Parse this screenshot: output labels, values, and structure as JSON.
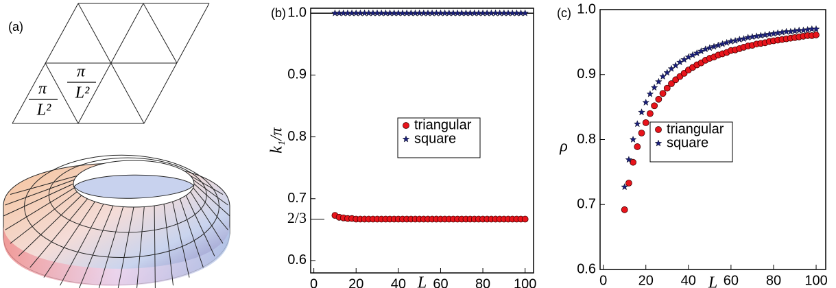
{
  "diagram": {
    "panel_label": "(a)",
    "fractions": [
      {
        "numerator": "π",
        "denominator": "L²"
      },
      {
        "numerator": "π",
        "denominator": "L²"
      }
    ]
  },
  "chart_data": [
    {
      "type": "scatter",
      "panel_label": "(b)",
      "x_label": "L",
      "y_label": "k₁/π",
      "xlim": [
        -1.5,
        104
      ],
      "ylim": [
        0.58,
        1.008
      ],
      "xticks": [
        0,
        20,
        40,
        60,
        80,
        100
      ],
      "yticks": [
        0.6,
        {
          "value": 0.6667,
          "label": "2/3"
        },
        0.7,
        0.8,
        0.9,
        {
          "value": 1,
          "label": "1.0"
        }
      ],
      "hlines": [
        1
      ],
      "legend": "center right",
      "x": [
        10,
        12,
        14,
        16,
        18,
        20,
        22,
        24,
        26,
        28,
        30,
        32,
        34,
        36,
        38,
        40,
        42,
        44,
        46,
        48,
        50,
        52,
        54,
        56,
        58,
        60,
        62,
        64,
        66,
        68,
        70,
        72,
        74,
        76,
        78,
        80,
        82,
        84,
        86,
        88,
        90,
        92,
        94,
        96,
        98,
        100
      ],
      "series": [
        {
          "name": "triangular",
          "color": "#e8141b",
          "marker": "circle",
          "values": [
            0.673,
            0.67,
            0.669,
            0.668,
            0.668,
            0.667,
            0.667,
            0.667,
            0.667,
            0.667,
            0.667,
            0.667,
            0.667,
            0.667,
            0.667,
            0.667,
            0.667,
            0.667,
            0.667,
            0.667,
            0.667,
            0.667,
            0.667,
            0.667,
            0.667,
            0.667,
            0.667,
            0.667,
            0.667,
            0.667,
            0.667,
            0.667,
            0.667,
            0.667,
            0.667,
            0.667,
            0.667,
            0.667,
            0.667,
            0.667,
            0.667,
            0.667,
            0.667,
            0.667,
            0.667,
            0.667
          ]
        },
        {
          "name": "square",
          "color": "#1a1f7a",
          "marker": "star",
          "values": [
            1,
            1,
            1,
            1,
            1,
            1,
            1,
            1,
            1,
            1,
            1,
            1,
            1,
            1,
            1,
            1,
            1,
            1,
            1,
            1,
            1,
            1,
            1,
            1,
            1,
            1,
            1,
            1,
            1,
            1,
            1,
            1,
            1,
            1,
            1,
            1,
            1,
            1,
            1,
            1,
            1,
            1,
            1,
            1,
            1,
            1
          ]
        }
      ]
    },
    {
      "type": "scatter",
      "panel_label": "(c)",
      "x_label": "L",
      "y_label": "ρ",
      "xlim": [
        -1.5,
        104.5
      ],
      "ylim": [
        0.6,
        1.0
      ],
      "xticks": [
        0,
        20,
        40,
        60,
        80,
        100
      ],
      "yticks": [
        0.6,
        0.7,
        0.8,
        0.9,
        {
          "value": 1,
          "label": "1.0"
        }
      ],
      "legend": "center right",
      "x": [
        10,
        12,
        14,
        16,
        18,
        20,
        22,
        24,
        26,
        28,
        30,
        32,
        34,
        36,
        38,
        40,
        42,
        44,
        46,
        48,
        50,
        52,
        54,
        56,
        58,
        60,
        62,
        64,
        66,
        68,
        70,
        72,
        74,
        76,
        78,
        80,
        82,
        84,
        86,
        88,
        90,
        92,
        94,
        96,
        98,
        100
      ],
      "series": [
        {
          "name": "triangular",
          "color": "#e8141b",
          "marker": "circle",
          "values": [
            0.692,
            0.733,
            0.765,
            0.789,
            0.81,
            0.826,
            0.84,
            0.852,
            0.862,
            0.871,
            0.879,
            0.886,
            0.892,
            0.897,
            0.902,
            0.907,
            0.911,
            0.915,
            0.918,
            0.922,
            0.925,
            0.927,
            0.93,
            0.932,
            0.934,
            0.937,
            0.938,
            0.94,
            0.942,
            0.944,
            0.945,
            0.947,
            0.948,
            0.949,
            0.951,
            0.952,
            0.953,
            0.954,
            0.955,
            0.956,
            0.957,
            0.958,
            0.959,
            0.96,
            0.96,
            0.961
          ]
        },
        {
          "name": "square",
          "color": "#1a1f7a",
          "marker": "star",
          "values": [
            0.727,
            0.769,
            0.8,
            0.824,
            0.842,
            0.857,
            0.87,
            0.88,
            0.889,
            0.897,
            0.903,
            0.909,
            0.914,
            0.919,
            0.923,
            0.927,
            0.93,
            0.933,
            0.936,
            0.939,
            0.941,
            0.943,
            0.945,
            0.947,
            0.949,
            0.951,
            0.952,
            0.954,
            0.955,
            0.957,
            0.958,
            0.959,
            0.96,
            0.961,
            0.962,
            0.963,
            0.964,
            0.965,
            0.966,
            0.966,
            0.967,
            0.968,
            0.968,
            0.969,
            0.97,
            0.97
          ]
        }
      ]
    }
  ]
}
